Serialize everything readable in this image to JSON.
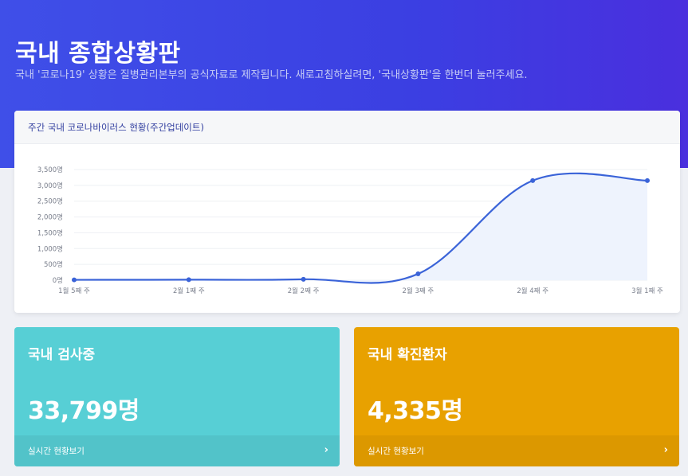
{
  "header": {
    "title": "국내 종합상황판",
    "subtitle": "국내 '코로나19' 상황은 질병관리본부의 공식자료로 제작됩니다. 새로고침하실려면, '국내상황판'을 한번더 눌러주세요."
  },
  "chart_card": {
    "title": "주간 국내 코로나바이러스 현황(주간업데이트)"
  },
  "chart_data": {
    "type": "area",
    "categories": [
      "1월 5째 주",
      "2월 1째 주",
      "2월 2째 주",
      "2월 3째 주",
      "2월 4째 주",
      "3월 1째 주"
    ],
    "values": [
      11,
      15,
      28,
      200,
      3150,
      3150
    ],
    "ylim": [
      0,
      3500
    ],
    "yticks": [
      0,
      500,
      1000,
      1500,
      2000,
      2500,
      3000,
      3500
    ],
    "ytick_labels": [
      "0명",
      "500명",
      "1,000명",
      "1,500명",
      "2,000명",
      "2,500명",
      "3,000명",
      "3,500명"
    ],
    "title": "",
    "xlabel": "",
    "ylabel": "",
    "grid": true,
    "line_color": "#3a63d8",
    "fill_color": "#eef3fd"
  },
  "stats": {
    "testing": {
      "title": "국내 검사중",
      "value": "33,799명",
      "link": "실시간 현황보기",
      "color": "#57cfd5"
    },
    "confirmed": {
      "title": "국내 확진환자",
      "value": "4,335명",
      "link": "실시간 현황보기",
      "color": "#e8a100"
    }
  },
  "icons": {
    "chevron": "›"
  }
}
